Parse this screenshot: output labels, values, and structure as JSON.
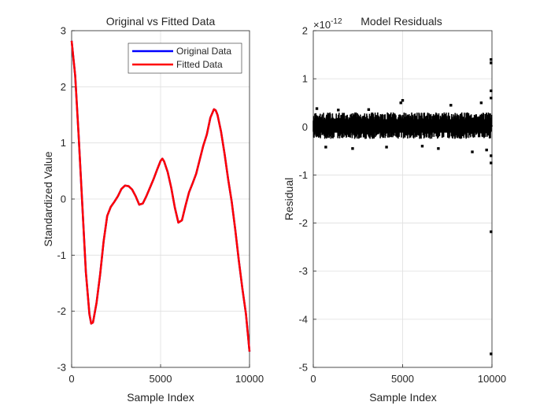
{
  "chart_data": [
    {
      "type": "line",
      "title": "Original vs Fitted Data",
      "xlabel": "Sample Index",
      "ylabel": "Standardized Value",
      "xlim": [
        0,
        10000
      ],
      "ylim": [
        -3,
        3
      ],
      "xticks": [
        0,
        5000,
        10000
      ],
      "yticks": [
        -3,
        -2,
        -1,
        0,
        1,
        2,
        3
      ],
      "grid": true,
      "legend_position": "top-right",
      "series": [
        {
          "name": "Original Data",
          "color": "#0000ff",
          "x": [
            0,
            200,
            400,
            600,
            800,
            1000,
            1100,
            1200,
            1400,
            1600,
            1800,
            2000,
            2200,
            2400,
            2600,
            2800,
            3000,
            3200,
            3400,
            3600,
            3800,
            4000,
            4200,
            4400,
            4600,
            4800,
            5000,
            5100,
            5200,
            5400,
            5600,
            5800,
            6000,
            6200,
            6400,
            6600,
            6800,
            7000,
            7200,
            7400,
            7600,
            7800,
            8000,
            8100,
            8200,
            8400,
            8600,
            8800,
            9000,
            9200,
            9400,
            9600,
            9800,
            10000
          ],
          "values": [
            2.82,
            2.2,
            1.1,
            -0.1,
            -1.3,
            -2.05,
            -2.22,
            -2.2,
            -1.85,
            -1.35,
            -0.75,
            -0.3,
            -0.14,
            -0.05,
            0.05,
            0.18,
            0.24,
            0.23,
            0.17,
            0.05,
            -0.1,
            -0.08,
            0.05,
            0.2,
            0.35,
            0.52,
            0.68,
            0.72,
            0.67,
            0.48,
            0.2,
            -0.15,
            -0.42,
            -0.38,
            -0.12,
            0.12,
            0.28,
            0.45,
            0.7,
            0.95,
            1.15,
            1.45,
            1.6,
            1.58,
            1.5,
            1.2,
            0.8,
            0.35,
            -0.05,
            -0.55,
            -1.1,
            -1.6,
            -2.05,
            -2.72
          ]
        },
        {
          "name": "Fitted Data",
          "color": "#ff0000",
          "x": [
            0,
            200,
            400,
            600,
            800,
            1000,
            1100,
            1200,
            1400,
            1600,
            1800,
            2000,
            2200,
            2400,
            2600,
            2800,
            3000,
            3200,
            3400,
            3600,
            3800,
            4000,
            4200,
            4400,
            4600,
            4800,
            5000,
            5100,
            5200,
            5400,
            5600,
            5800,
            6000,
            6200,
            6400,
            6600,
            6800,
            7000,
            7200,
            7400,
            7600,
            7800,
            8000,
            8100,
            8200,
            8400,
            8600,
            8800,
            9000,
            9200,
            9400,
            9600,
            9800,
            10000
          ],
          "values": [
            2.82,
            2.2,
            1.1,
            -0.1,
            -1.3,
            -2.05,
            -2.22,
            -2.2,
            -1.85,
            -1.35,
            -0.75,
            -0.3,
            -0.14,
            -0.05,
            0.05,
            0.18,
            0.24,
            0.23,
            0.17,
            0.05,
            -0.1,
            -0.08,
            0.05,
            0.2,
            0.35,
            0.52,
            0.68,
            0.72,
            0.67,
            0.48,
            0.2,
            -0.15,
            -0.42,
            -0.38,
            -0.12,
            0.12,
            0.28,
            0.45,
            0.7,
            0.95,
            1.15,
            1.45,
            1.6,
            1.58,
            1.5,
            1.2,
            0.8,
            0.35,
            -0.05,
            -0.55,
            -1.1,
            -1.6,
            -2.05,
            -2.72
          ]
        }
      ]
    },
    {
      "type": "scatter",
      "title": "Model Residuals",
      "multiplier_label": "×10",
      "multiplier_exponent": "-12",
      "xlabel": "Sample Index",
      "ylabel": "Residual",
      "xlim": [
        0,
        10000
      ],
      "ylim": [
        -5,
        2
      ],
      "xticks": [
        0,
        5000,
        10000
      ],
      "yticks": [
        -5,
        -4,
        -3,
        -2,
        -1,
        0,
        1,
        2
      ],
      "grid": true,
      "marker_color": "#000000",
      "band": {
        "x_range": [
          0,
          10000
        ],
        "typical_range": [
          -0.25,
          0.3
        ],
        "outlier_x": [
          2200,
          4100,
          4900,
          5000,
          7000,
          7700,
          8900,
          9400,
          9700
        ]
      },
      "points": {
        "x": [
          200,
          700,
          1400,
          2200,
          3100,
          4100,
          4900,
          5000,
          6100,
          7000,
          7700,
          8900,
          9400,
          9700,
          9950,
          9950,
          9950,
          9950,
          9950,
          9950,
          9950,
          9950
        ],
        "y": [
          0.38,
          -0.42,
          0.35,
          -0.45,
          0.36,
          -0.42,
          0.5,
          0.55,
          -0.4,
          -0.45,
          0.45,
          -0.52,
          0.5,
          -0.48,
          1.4,
          1.33,
          0.75,
          0.6,
          -0.6,
          -0.75,
          -2.18,
          -4.72
        ]
      }
    }
  ]
}
